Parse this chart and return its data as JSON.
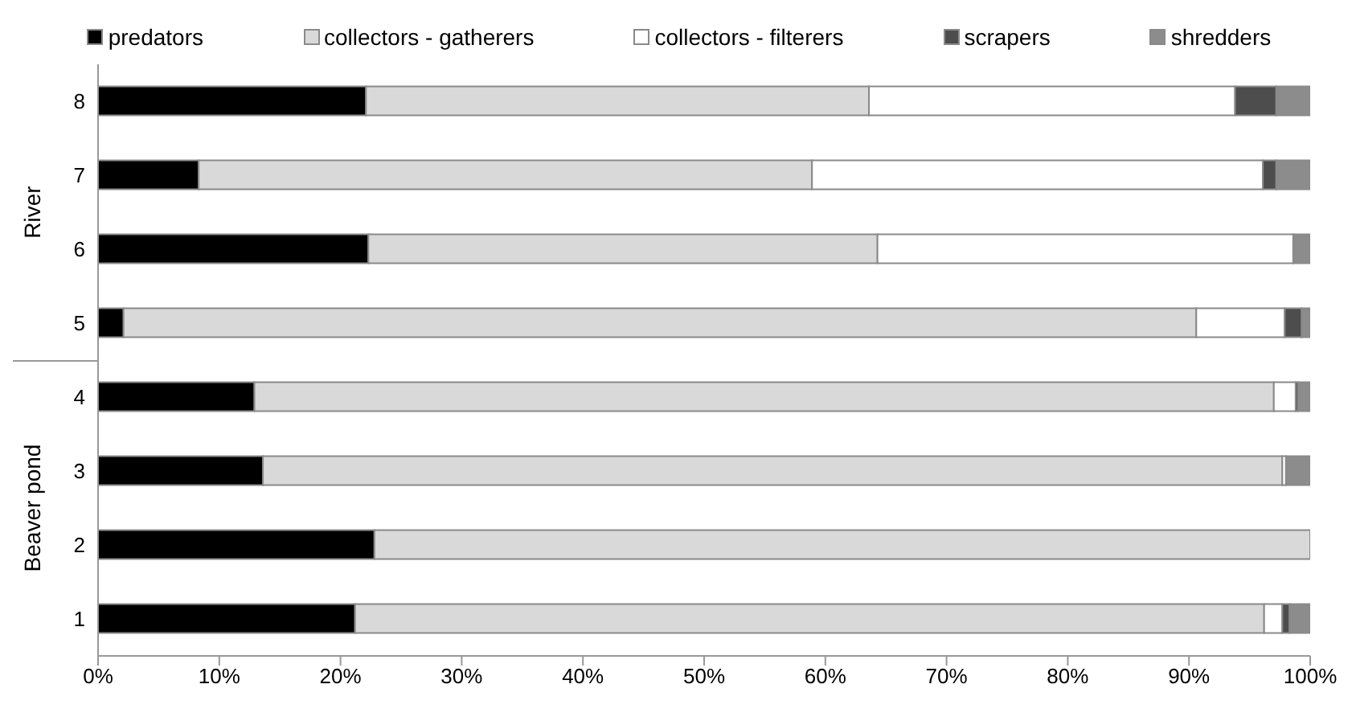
{
  "chart_data": {
    "type": "bar",
    "orientation": "horizontal",
    "stacked": true,
    "categories": [
      "8",
      "7",
      "6",
      "5",
      "4",
      "3",
      "2",
      "1"
    ],
    "series": [
      {
        "name": "predators",
        "color": "#000000",
        "values": [
          22.1,
          8.3,
          22.3,
          2.1,
          12.9,
          13.6,
          22.8,
          21.2
        ]
      },
      {
        "name": "collectors - gatherers",
        "color": "#d9d9d9",
        "values": [
          41.5,
          50.6,
          42.0,
          88.5,
          84.1,
          84.1,
          77.2,
          75.0
        ]
      },
      {
        "name": "collectors - filterers",
        "color": "#ffffff",
        "values": [
          30.2,
          37.2,
          34.3,
          7.3,
          1.8,
          0.3,
          0,
          1.5
        ]
      },
      {
        "name": "scrapers",
        "color": "#4d4d4d",
        "values": [
          3.4,
          1.1,
          0,
          1.4,
          0.2,
          0,
          0,
          0.6
        ]
      },
      {
        "name": "shredders",
        "color": "#8c8c8c",
        "values": [
          2.8,
          2.8,
          1.4,
          0.7,
          1.0,
          2.0,
          0,
          1.7
        ]
      }
    ],
    "xlim": [
      0,
      100
    ],
    "xticks": [
      {
        "value": 0,
        "label": "0%"
      },
      {
        "value": 10,
        "label": "10%"
      },
      {
        "value": 20,
        "label": "20%"
      },
      {
        "value": 30,
        "label": "30%"
      },
      {
        "value": 40,
        "label": "40%"
      },
      {
        "value": 50,
        "label": "50%"
      },
      {
        "value": 60,
        "label": "60%"
      },
      {
        "value": 70,
        "label": "70%"
      },
      {
        "value": 80,
        "label": "80%"
      },
      {
        "value": 90,
        "label": "90%"
      },
      {
        "value": 100,
        "label": "100%"
      }
    ],
    "annotations": [
      "River",
      "Beaver pond"
    ],
    "legend": "top",
    "grid": false
  }
}
